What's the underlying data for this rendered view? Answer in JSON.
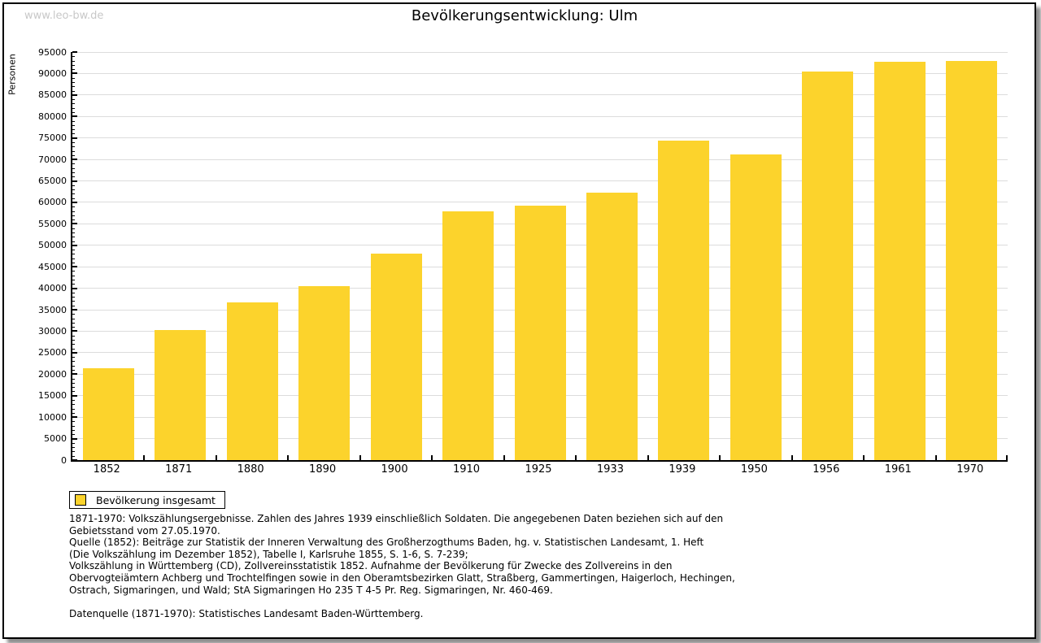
{
  "watermark": "www.leo-bw.de",
  "title": "Bevölkerungsentwicklung: Ulm",
  "y_axis_label": "Personen",
  "legend": {
    "label": "Bevölkerung insgesamt"
  },
  "colors": {
    "bar": "#FCD32C",
    "grid": "#DCDCDC",
    "axis": "#000000",
    "watermark": "#C8C8C8",
    "shadow": "#8F8F8F"
  },
  "chart_data": {
    "type": "bar",
    "title": "Bevölkerungsentwicklung: Ulm",
    "categories": [
      "1852",
      "1871",
      "1880",
      "1890",
      "1900",
      "1910",
      "1925",
      "1933",
      "1939",
      "1950",
      "1956",
      "1961",
      "1970"
    ],
    "values": [
      21400,
      30300,
      36800,
      40500,
      48000,
      58000,
      59300,
      62300,
      74400,
      71100,
      90400,
      92700,
      93000
    ],
    "series_name": "Bevölkerung insgesamt",
    "xlabel": "",
    "ylabel": "Personen",
    "ylim": [
      0,
      95000
    ],
    "ytick_major": 5000,
    "ytick_minor": 1000,
    "grid": "horizontal-major",
    "legend_position": "bottom-left",
    "bar_color": "#FCD32C"
  },
  "footnotes": [
    "1871-1970: Volkszählungsergebnisse. Zahlen des Jahres 1939 einschließlich Soldaten. Die angegebenen Daten beziehen sich auf den",
    "Gebietsstand vom 27.05.1970.",
    "Quelle (1852): Beiträge zur Statistik der Inneren Verwaltung des Großherzogthums Baden, hg. v. Statistischen Landesamt, 1. Heft",
    "(Die Volkszählung im Dezember 1852), Tabelle I, Karlsruhe 1855, S. 1-6, S. 7-239;",
    "Volkszählung in Württemberg (CD), Zollvereinsstatistik 1852. Aufnahme der Bevölkerung für Zwecke des Zollvereins in den",
    "Obervogteiämtern Achberg und Trochtelfingen sowie in den Oberamtsbezirken Glatt, Straßberg, Gammertingen, Haigerloch, Hechingen,",
    "Ostrach, Sigmaringen, und Wald; StA Sigmaringen Ho 235 T 4-5 Pr. Reg. Sigmaringen, Nr. 460-469.",
    "",
    "Datenquelle (1871-1970): Statistisches Landesamt Baden-Württemberg."
  ]
}
